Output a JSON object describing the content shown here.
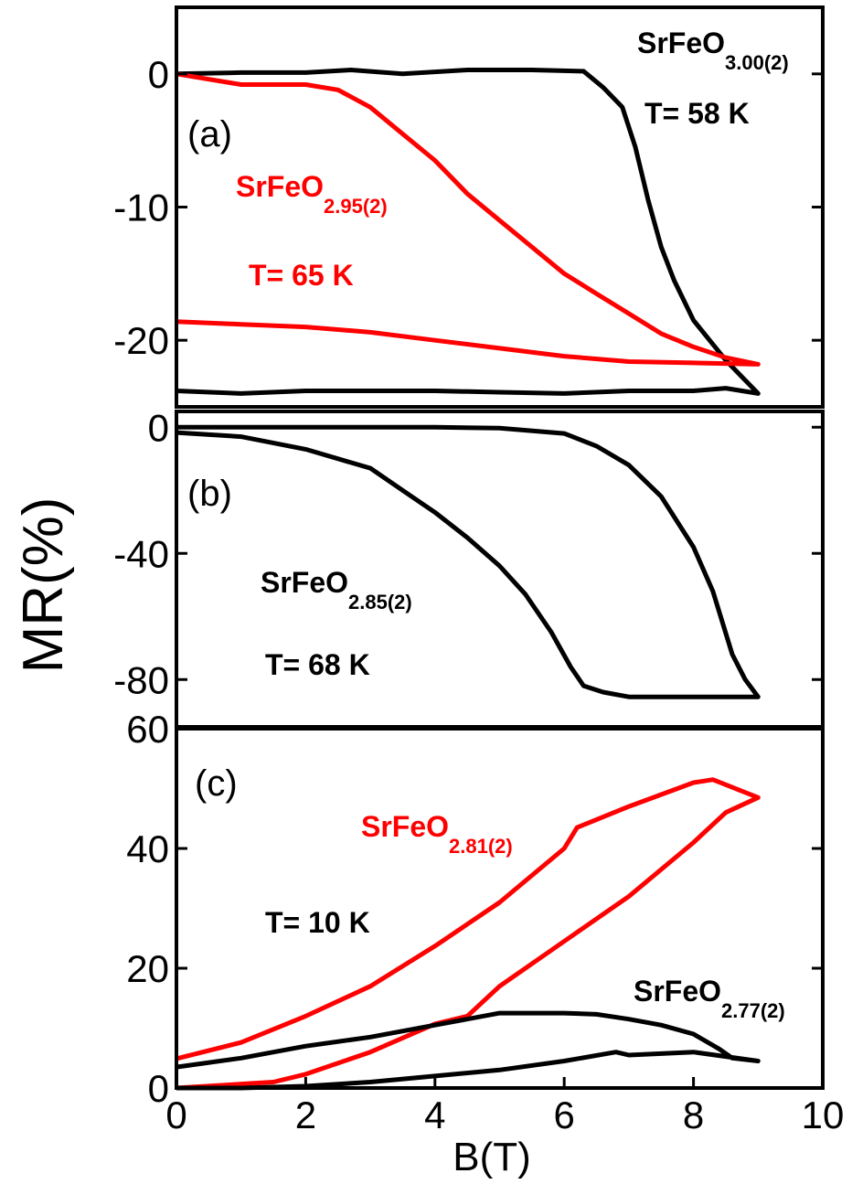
{
  "chart_data": [
    {
      "type": "line",
      "xlim": [
        0,
        10
      ],
      "ylim": [
        -25,
        5
      ],
      "yticks": [
        0,
        -10,
        -20
      ],
      "annotations": [
        {
          "text": "(a)",
          "color": "#000000",
          "bold": false
        },
        {
          "text": "SrFeO",
          "sub": "3.00(2)",
          "color": "#000000",
          "bold": true
        },
        {
          "text": "T= 58 K",
          "color": "#000000",
          "bold": true
        },
        {
          "text": "SrFeO",
          "sub": "2.95(2)",
          "color": "#ff0000",
          "bold": true
        },
        {
          "text": "T= 65 K",
          "color": "#ff0000",
          "bold": true
        }
      ],
      "series": [
        {
          "color": "#000000",
          "x": [
            0,
            1,
            2,
            2.7,
            3.5,
            4.5,
            5.5,
            6.3,
            6.6,
            6.9,
            7.1,
            7.3,
            7.5,
            7.7,
            8,
            8.5,
            9,
            8.5,
            8,
            7,
            6,
            5,
            4,
            3,
            2,
            1,
            0
          ],
          "values": [
            0,
            0.1,
            0.1,
            0.3,
            0,
            0.3,
            0.3,
            0.2,
            -1,
            -2.5,
            -5.5,
            -9.5,
            -13,
            -15.5,
            -18.5,
            -21.5,
            -24,
            -23.6,
            -23.8,
            -23.8,
            -24,
            -23.9,
            -23.8,
            -23.8,
            -23.8,
            -24,
            -23.8
          ]
        },
        {
          "color": "#ff0000",
          "x": [
            0,
            1,
            2,
            2.5,
            3,
            3.5,
            4,
            4.5,
            5,
            5.5,
            6,
            6.5,
            7,
            7.5,
            8,
            8.5,
            9,
            8,
            7,
            6,
            5,
            4,
            3,
            2,
            1,
            0
          ],
          "values": [
            0,
            -0.8,
            -0.8,
            -1.2,
            -2.5,
            -4.5,
            -6.5,
            -9,
            -11,
            -13,
            -15,
            -16.5,
            -18,
            -19.5,
            -20.5,
            -21.3,
            -21.8,
            -21.7,
            -21.6,
            -21.2,
            -20.6,
            -20,
            -19.4,
            -19,
            -18.8,
            -18.6
          ]
        }
      ]
    },
    {
      "type": "line",
      "xlim": [
        0,
        10
      ],
      "ylim": [
        -95,
        5
      ],
      "yticks": [
        0,
        -40,
        -80
      ],
      "ylabel": "MR(%)",
      "annotations": [
        {
          "text": "(b)",
          "color": "#000000",
          "bold": false
        },
        {
          "text": "SrFeO",
          "sub": "2.85(2)",
          "color": "#000000",
          "bold": true
        },
        {
          "text": "T= 68 K",
          "color": "#000000",
          "bold": true
        }
      ],
      "series": [
        {
          "color": "#000000",
          "x": [
            0,
            1,
            2,
            3,
            4,
            5,
            6,
            6.5,
            7,
            7.5,
            8,
            8.3,
            8.6,
            8.8,
            9,
            8,
            7,
            6.6,
            6.3,
            6.1,
            5.8,
            5.4,
            5,
            4.5,
            4,
            3.5,
            3,
            2,
            1,
            0
          ],
          "values": [
            0,
            0,
            0,
            0,
            0,
            -0.3,
            -2,
            -6,
            -12,
            -22,
            -38,
            -52,
            -72,
            -80,
            -85.5,
            -85.5,
            -85.5,
            -84,
            -82,
            -76,
            -65,
            -53,
            -44,
            -35,
            -27,
            -20,
            -13,
            -7,
            -3,
            -1.7
          ]
        }
      ]
    },
    {
      "type": "line",
      "xlim": [
        0,
        10
      ],
      "ylim": [
        0,
        60
      ],
      "yticks": [
        0,
        20,
        40,
        60
      ],
      "xticks": [
        0,
        2,
        4,
        6,
        8,
        10
      ],
      "xlabel": "B(T)",
      "annotations": [
        {
          "text": "(c)",
          "color": "#000000",
          "bold": false
        },
        {
          "text": "SrFeO",
          "sub": "2.81(2)",
          "color": "#ff0000",
          "bold": true
        },
        {
          "text": "T= 10 K",
          "color": "#000000",
          "bold": true
        },
        {
          "text": "SrFeO",
          "sub": "2.77(2)",
          "color": "#000000",
          "bold": true
        }
      ],
      "series": [
        {
          "color": "#ff0000",
          "x": [
            0,
            1.5,
            2,
            3,
            4,
            4.5,
            5,
            6,
            7,
            8,
            8.5,
            9,
            8.3,
            8,
            7,
            6.2,
            6,
            5,
            4,
            3,
            2,
            1,
            0
          ],
          "values": [
            0,
            1,
            2.3,
            6,
            10.7,
            12,
            17,
            24.5,
            32,
            41,
            46,
            48.5,
            51.5,
            51,
            47,
            43.5,
            40,
            31,
            23.7,
            17,
            12,
            7.6,
            4.9
          ]
        },
        {
          "color": "#000000",
          "x": [
            0,
            1,
            2,
            3,
            4,
            5,
            6,
            6.5,
            7,
            7.5,
            8,
            8.4,
            8.6,
            9,
            8,
            7,
            6.8,
            6,
            5,
            4,
            3,
            2,
            1,
            0
          ],
          "values": [
            3.5,
            5,
            7,
            8.5,
            10.5,
            12.5,
            12.5,
            12.3,
            11.5,
            10.5,
            9,
            6.5,
            5,
            4.5,
            6,
            5.5,
            6,
            4.5,
            3,
            2,
            1,
            0.3,
            0,
            0
          ]
        }
      ]
    }
  ]
}
